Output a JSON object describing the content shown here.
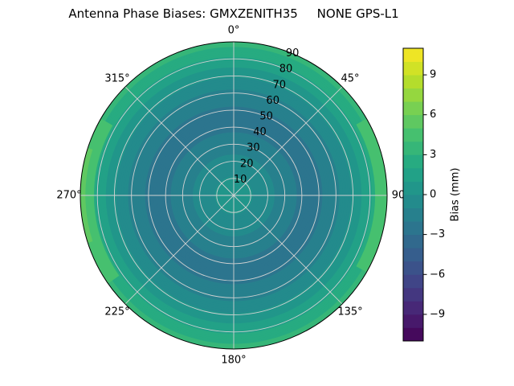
{
  "title": "Antenna Phase Biases: GMXZENITH35     NONE GPS-L1",
  "chart_data": {
    "type": "heatmap",
    "projection": "polar",
    "title": "Antenna Phase Biases: GMXZENITH35     NONE GPS-L1",
    "theta_direction": "clockwise-from-north",
    "theta_angles_deg": [
      0,
      45,
      90,
      135,
      180,
      225,
      270,
      315
    ],
    "theta_labels": [
      "0°",
      "45°",
      "90",
      "135°",
      "180°",
      "225°",
      "270°",
      "315°"
    ],
    "r_ticks": [
      10,
      20,
      30,
      40,
      50,
      60,
      70,
      80,
      90
    ],
    "r_max": 90,
    "r_label_azimuth_deg": 22.5,
    "grid": true,
    "radial_profile": {
      "zenith_deg": [
        0,
        10,
        20,
        30,
        40,
        50,
        60,
        70,
        80,
        90
      ],
      "bias_mm": [
        0.6,
        0.1,
        -0.7,
        -1.5,
        -2.2,
        -2.2,
        -1.3,
        0.2,
        1.8,
        3.4
      ]
    },
    "rim_highlights": [
      {
        "azimuth_start_deg": 60,
        "azimuth_end_deg": 120,
        "zenith_start_deg": 83,
        "zenith_end_deg": 90,
        "bias_mm": 4.6
      },
      {
        "azimuth_start_deg": 235,
        "azimuth_end_deg": 300,
        "zenith_start_deg": 82,
        "zenith_end_deg": 90,
        "bias_mm": 4.6
      },
      {
        "azimuth_start_deg": 252,
        "azimuth_end_deg": 288,
        "zenith_start_deg": 87,
        "zenith_end_deg": 90,
        "bias_mm": 5.5
      }
    ],
    "contour_band_width_mm": 1.0,
    "colorbar": {
      "label": "Bias (mm)",
      "tick_values": [
        9,
        6,
        3,
        0,
        -3,
        -6,
        -9
      ],
      "vmin": -11,
      "vmax": 11
    },
    "colormap": {
      "name": "viridis",
      "stops": [
        {
          "t": 0.0,
          "color": "#440154"
        },
        {
          "t": 0.1,
          "color": "#482475"
        },
        {
          "t": 0.2,
          "color": "#414487"
        },
        {
          "t": 0.3,
          "color": "#355f8d"
        },
        {
          "t": 0.4,
          "color": "#2a788e"
        },
        {
          "t": 0.5,
          "color": "#21918c"
        },
        {
          "t": 0.6,
          "color": "#22a884"
        },
        {
          "t": 0.7,
          "color": "#44bf70"
        },
        {
          "t": 0.8,
          "color": "#7ad151"
        },
        {
          "t": 0.9,
          "color": "#bddf26"
        },
        {
          "t": 1.0,
          "color": "#fde725"
        }
      ]
    }
  }
}
